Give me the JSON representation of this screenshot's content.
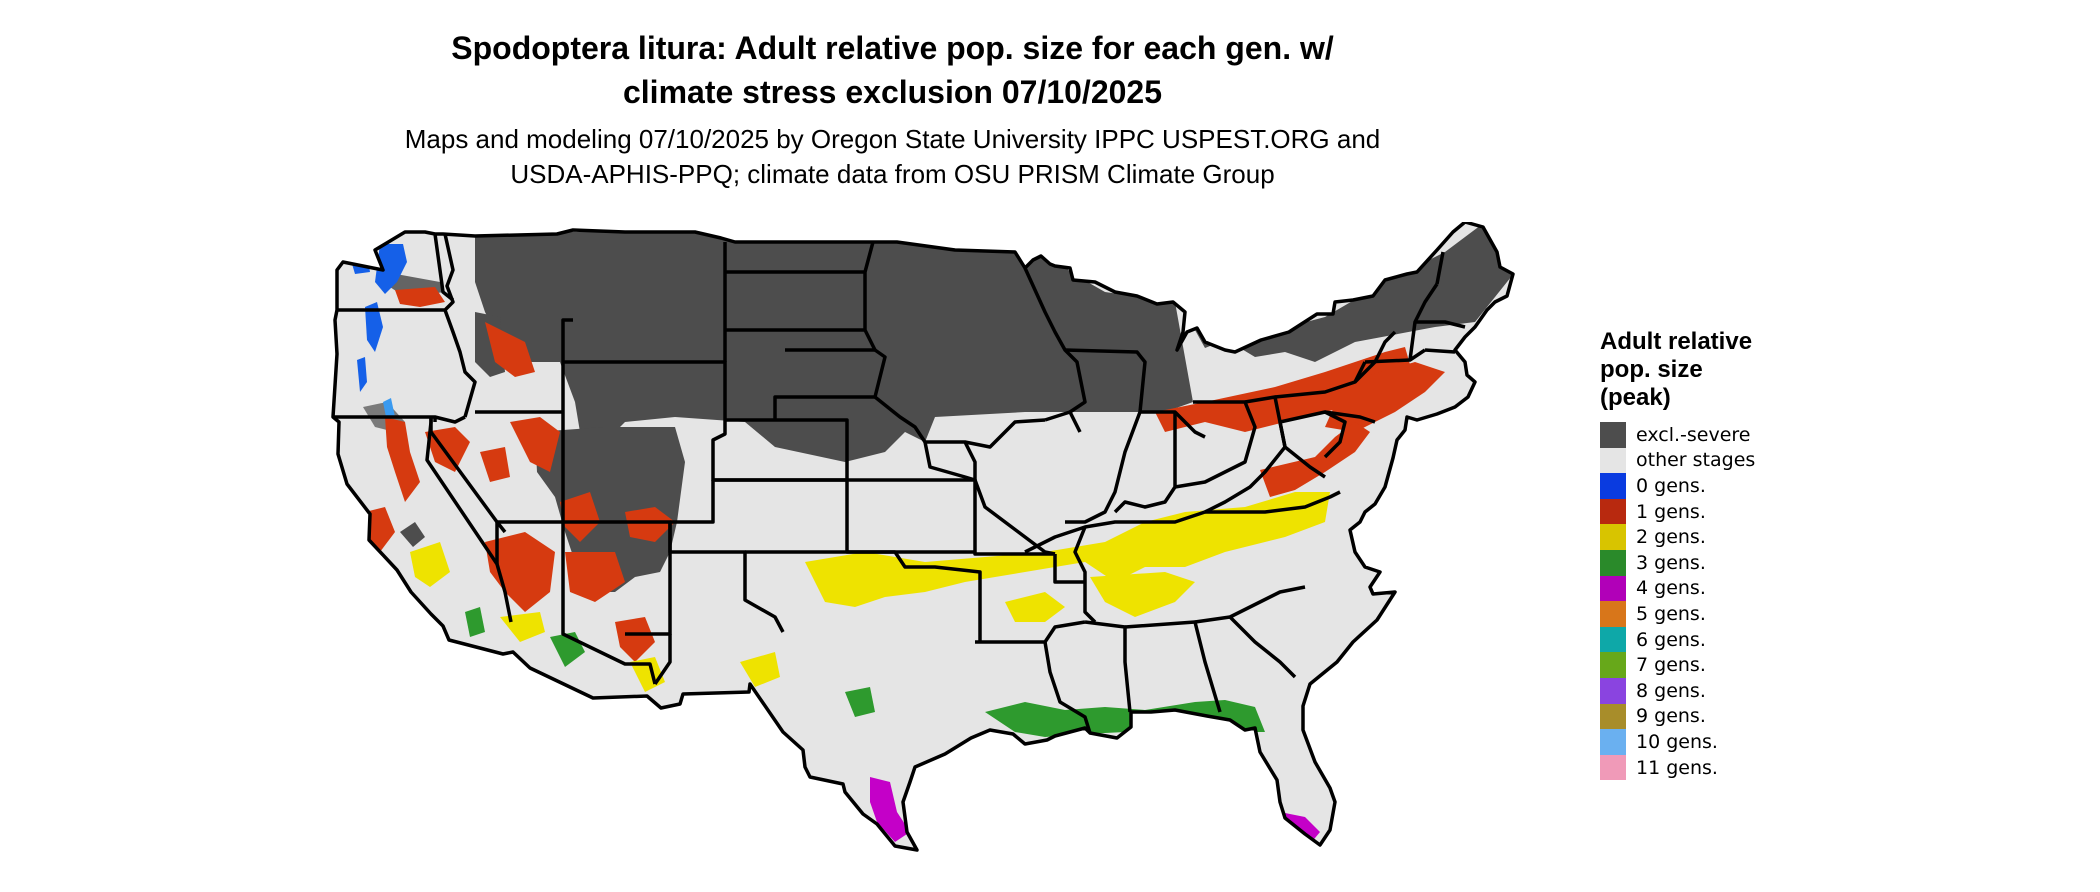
{
  "title": {
    "line1": "Spodoptera litura: Adult relative pop. size for each gen. w/",
    "line2": "climate stress exclusion 07/10/2025"
  },
  "subtitle": {
    "line1": "Maps and modeling 07/10/2025 by Oregon State University IPPC USPEST.ORG and",
    "line2": "USDA-APHIS-PPQ; climate data from OSU PRISM Climate Group"
  },
  "legend": {
    "title_lines": [
      "Adult relative",
      "pop. size",
      "(peak)"
    ],
    "items": [
      {
        "label": "excl.-severe",
        "color": "#4d4d4d"
      },
      {
        "label": "other stages",
        "color": "#e5e5e5"
      },
      {
        "label": "0 gens.",
        "color": "#0a3be0"
      },
      {
        "label": "1 gens.",
        "color": "#b8290f"
      },
      {
        "label": "2 gens.",
        "color": "#d8c400"
      },
      {
        "label": "3 gens.",
        "color": "#2a8a2a"
      },
      {
        "label": "4 gens.",
        "color": "#b100b8"
      },
      {
        "label": "5 gens.",
        "color": "#d8761a"
      },
      {
        "label": "6 gens.",
        "color": "#0ea8a8"
      },
      {
        "label": "7 gens.",
        "color": "#67a81a"
      },
      {
        "label": "8 gens.",
        "color": "#8a44e0"
      },
      {
        "label": "9 gens.",
        "color": "#a88d2a"
      },
      {
        "label": "10 gens.",
        "color": "#6ab0f0"
      },
      {
        "label": "11 gens.",
        "color": "#f09ab8"
      }
    ]
  },
  "map": {
    "region": "conterminous United States",
    "fill_colors": {
      "land": "#e5e5e5",
      "excluded": "#4d4d4d",
      "gen0": "#0a3be0",
      "gen1": "#d63a10",
      "gen2": "#eee300",
      "gen3": "#2e9a2e",
      "gen4": "#c400c8",
      "gen10": "#3a9af0",
      "border": "#000000"
    }
  }
}
